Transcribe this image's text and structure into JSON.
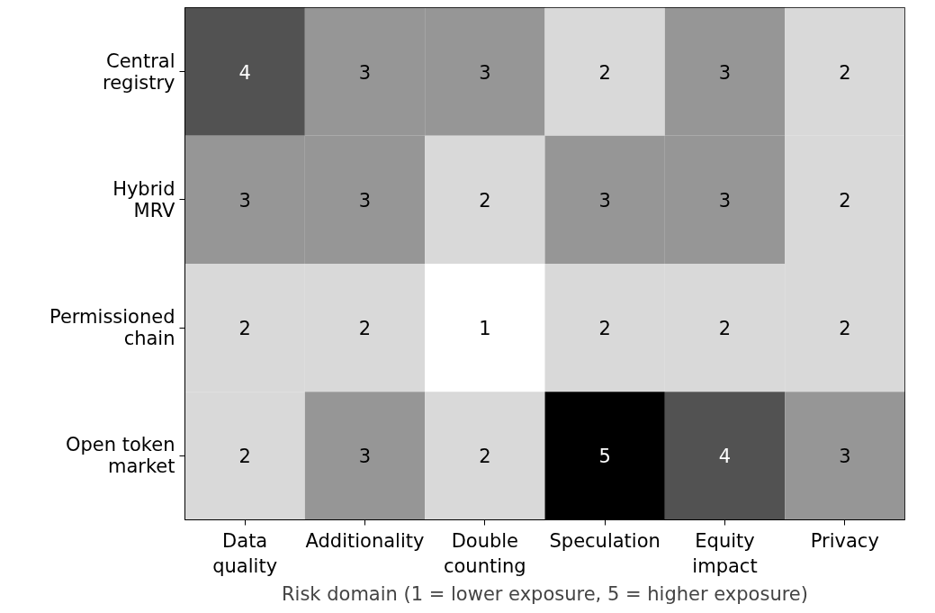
{
  "chart_data": {
    "type": "heatmap",
    "xlabel": "Risk domain (1 = lower exposure, 5 = higher exposure)",
    "categories": [
      "Data\nquality",
      "Additionality",
      "Double\ncounting",
      "Speculation",
      "Equity\nimpact",
      "Privacy"
    ],
    "y_categories": [
      "Central\nregistry",
      "Hybrid\nMRV",
      "Permissioned\nchain",
      "Open token\nmarket"
    ],
    "cells": [
      [
        4,
        3,
        3,
        2,
        3,
        2
      ],
      [
        3,
        3,
        2,
        3,
        3,
        2
      ],
      [
        2,
        2,
        1,
        2,
        2,
        2
      ],
      [
        2,
        3,
        2,
        5,
        4,
        3
      ]
    ],
    "data_labels": true
  }
}
